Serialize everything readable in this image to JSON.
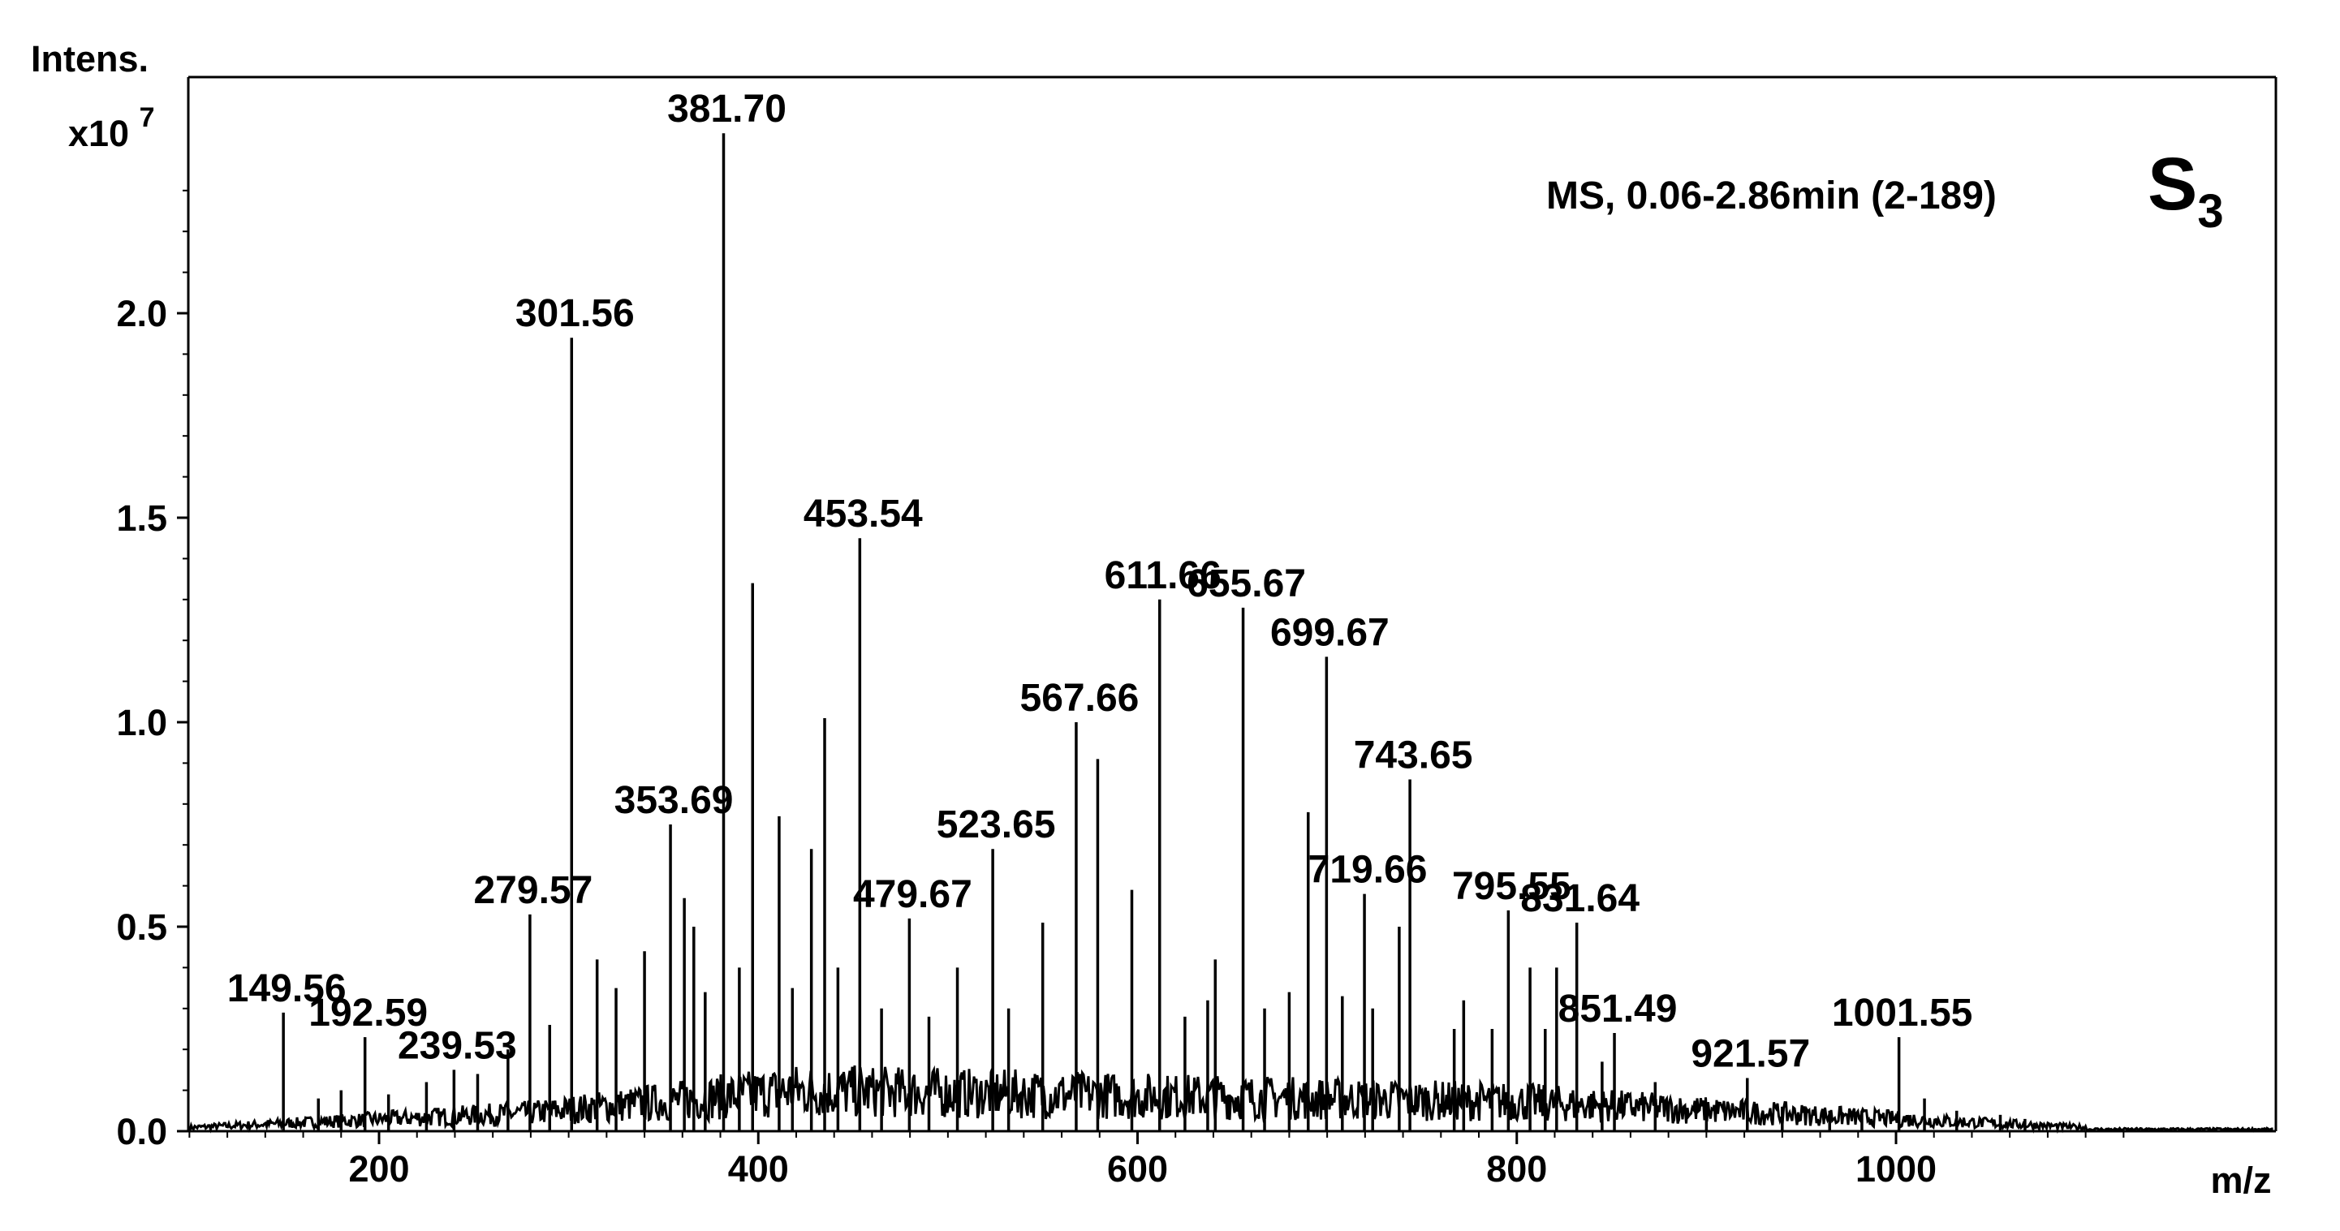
{
  "chart_data": {
    "type": "line",
    "ylabel": "Intens.",
    "y_multiplier": "x10",
    "y_multiplier_exp": "7",
    "xlabel": "m/z",
    "annotation": "MS, 0.06-2.86min (2-189)",
    "sample_label": "S",
    "sample_sub": "3",
    "xlim": [
      100,
      1000
    ],
    "ylim": [
      0,
      2.45
    ],
    "x_ticks": [
      200,
      400,
      600,
      800,
      1000
    ],
    "y_ticks": [
      "0.0",
      "0.5",
      "1.0",
      "1.5",
      "2.0"
    ],
    "labeled_peaks": [
      {
        "x": 149.56,
        "y": 0.29,
        "label": "149.56"
      },
      {
        "x": 192.59,
        "y": 0.23,
        "label": "192.59"
      },
      {
        "x": 239.53,
        "y": 0.15,
        "label": "239.53"
      },
      {
        "x": 279.57,
        "y": 0.53,
        "label": "279.57"
      },
      {
        "x": 301.56,
        "y": 1.94,
        "label": "301.56"
      },
      {
        "x": 353.69,
        "y": 0.75,
        "label": "353.69"
      },
      {
        "x": 381.7,
        "y": 2.44,
        "label": "381.70"
      },
      {
        "x": 453.54,
        "y": 1.45,
        "label": "453.54"
      },
      {
        "x": 479.67,
        "y": 0.52,
        "label": "479.67"
      },
      {
        "x": 523.65,
        "y": 0.69,
        "label": "523.65"
      },
      {
        "x": 567.66,
        "y": 1.0,
        "label": "567.66"
      },
      {
        "x": 611.66,
        "y": 1.3,
        "label": "611.66"
      },
      {
        "x": 655.67,
        "y": 1.28,
        "label": "655.67"
      },
      {
        "x": 699.67,
        "y": 1.16,
        "label": "699.67"
      },
      {
        "x": 719.66,
        "y": 0.58,
        "label": "719.66"
      },
      {
        "x": 743.65,
        "y": 0.86,
        "label": "743.65"
      },
      {
        "x": 795.55,
        "y": 0.54,
        "label": "795.55"
      },
      {
        "x": 831.64,
        "y": 0.51,
        "label": "831.64"
      },
      {
        "x": 851.49,
        "y": 0.24,
        "label": "851.49"
      },
      {
        "x": 921.57,
        "y": 0.13,
        "label": "921.57"
      },
      {
        "x": 1001.55,
        "y": 0.23,
        "label": "1001.55"
      }
    ],
    "other_peaks": [
      {
        "x": 168,
        "y": 0.08
      },
      {
        "x": 180,
        "y": 0.1
      },
      {
        "x": 205,
        "y": 0.09
      },
      {
        "x": 225,
        "y": 0.12
      },
      {
        "x": 252,
        "y": 0.14
      },
      {
        "x": 268,
        "y": 0.2
      },
      {
        "x": 290,
        "y": 0.26
      },
      {
        "x": 315,
        "y": 0.42
      },
      {
        "x": 325,
        "y": 0.35
      },
      {
        "x": 340,
        "y": 0.44
      },
      {
        "x": 361,
        "y": 0.57
      },
      {
        "x": 366,
        "y": 0.5
      },
      {
        "x": 372,
        "y": 0.34
      },
      {
        "x": 390,
        "y": 0.4
      },
      {
        "x": 397,
        "y": 1.34
      },
      {
        "x": 411,
        "y": 0.77
      },
      {
        "x": 418,
        "y": 0.35
      },
      {
        "x": 428,
        "y": 0.69
      },
      {
        "x": 435,
        "y": 1.01
      },
      {
        "x": 442,
        "y": 0.4
      },
      {
        "x": 465,
        "y": 0.3
      },
      {
        "x": 490,
        "y": 0.28
      },
      {
        "x": 505,
        "y": 0.4
      },
      {
        "x": 532,
        "y": 0.3
      },
      {
        "x": 550,
        "y": 0.51
      },
      {
        "x": 579,
        "y": 0.91
      },
      {
        "x": 597,
        "y": 0.59
      },
      {
        "x": 625,
        "y": 0.28
      },
      {
        "x": 637,
        "y": 0.32
      },
      {
        "x": 641,
        "y": 0.42
      },
      {
        "x": 667,
        "y": 0.3
      },
      {
        "x": 680,
        "y": 0.34
      },
      {
        "x": 690,
        "y": 0.78
      },
      {
        "x": 708,
        "y": 0.33
      },
      {
        "x": 724,
        "y": 0.3
      },
      {
        "x": 738,
        "y": 0.5
      },
      {
        "x": 767,
        "y": 0.25
      },
      {
        "x": 772,
        "y": 0.32
      },
      {
        "x": 787,
        "y": 0.25
      },
      {
        "x": 807,
        "y": 0.4
      },
      {
        "x": 815,
        "y": 0.25
      },
      {
        "x": 821,
        "y": 0.4
      },
      {
        "x": 845,
        "y": 0.17
      },
      {
        "x": 873,
        "y": 0.12
      },
      {
        "x": 900,
        "y": 0.07
      },
      {
        "x": 940,
        "y": 0.06
      },
      {
        "x": 965,
        "y": 0.05
      },
      {
        "x": 982,
        "y": 0.05
      },
      {
        "x": 1015,
        "y": 0.08
      },
      {
        "x": 1032,
        "y": 0.05
      },
      {
        "x": 1055,
        "y": 0.04
      },
      {
        "x": 1068,
        "y": 0.03
      }
    ]
  }
}
